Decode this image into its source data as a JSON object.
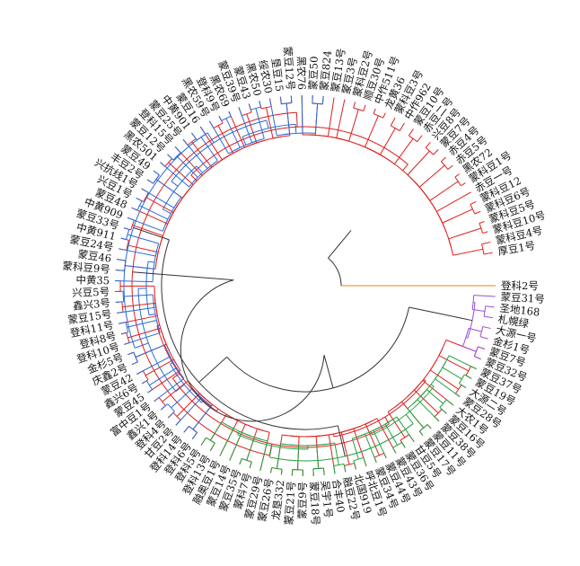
{
  "chart_data": {
    "type": "dendrogram",
    "layout": "circular",
    "leaves_clockwise_from_right": [
      "登科2号",
      "蒙豆31号",
      "圣地168",
      "札幌绿",
      "大源一号",
      "金杉1号",
      "蒙豆7号",
      "蒙豆32号",
      "蒙豆37号",
      "蒙豆19号",
      "大源二号",
      "蒙豆28号",
      "大农1号",
      "蒙豆16号",
      "蒙豆38号",
      "蒙豆11号",
      "蒙豆17号",
      "甘豆5号",
      "蒙豆36号",
      "蒙豆43号",
      "蒙豆44号",
      "蒙豆34号",
      "呼北豆1号",
      "北国919",
      "融豆22号",
      "合丰40",
      "吴宇1号",
      "蒙豆18号",
      "蒙豆9号",
      "蒙豆21号",
      "龙垦332",
      "蒙豆26号",
      "蒙豆29号",
      "蒙科7号",
      "蒙豆35号",
      "蒙豆14号",
      "融奥豆1号",
      "登科13号",
      "登科5号",
      "登科6号",
      "登科14号",
      "甘豆2号",
      "登科4号",
      "鑫兴1号",
      "富中豆1号",
      "蒙豆45",
      "鑫兴6号",
      "蒙豆42",
      "庆鑫2号",
      "金杉5号",
      "登科10号",
      "登科8号",
      "登科11号",
      "蒙豆15号",
      "鑫兴3号",
      "兴豆5号",
      "中黄35",
      "蒙科豆9号",
      "蒙豆46",
      "蒙豆24号",
      "中黄911",
      "蒙豆33号",
      "中黄909",
      "蒙豆48",
      "兴豆1号",
      "兴抗线1号",
      "丰豆2号",
      "蒙豆49",
      "黑农501",
      "蒙豆12号",
      "登科15号",
      "蒙豆25号",
      "中黄901",
      "蒙豆16",
      "黑农59号",
      "登科9号",
      "黑农69",
      "蒙豆39号",
      "蒙豆43",
      "黑农50",
      "绥农30",
      "垦豆15",
      "蒙豆12号",
      "黑农76",
      "蒙豆50",
      "蒙豆824",
      "蒙豆13号",
      "蒙豆3号",
      "蒙科豆2号",
      "顺豆30号",
      "中作511号",
      "龙黄36",
      "蒙科豆3号",
      "中作962",
      "蒙豆10号",
      "赤豆二号",
      "兴豆8号",
      "蒙豆7号",
      "赤豆4号",
      "赤豆5号",
      "黑农72",
      "蒙科豆1号",
      "赤豆一号",
      "蒙科豆12",
      "蒙科豆6号",
      "蒙科豆5号",
      "蒙科豆10号",
      "蒙科豆4号",
      "厚豆1号"
    ],
    "clusters": [
      {
        "color": "#DD1F1F",
        "leaves": [
          "蒙豆13号",
          "蒙豆3号",
          "蒙科豆2号",
          "顺豆30号",
          "中作511号",
          "龙黄36",
          "蒙科豆3号",
          "中作962",
          "蒙豆10号",
          "赤豆二号",
          "兴豆8号",
          "蒙豆7号",
          "赤豆4号",
          "赤豆5号",
          "黑农72",
          "蒙科豆1号",
          "赤豆一号",
          "蒙科豆12",
          "蒙科豆6号",
          "蒙科豆5号",
          "蒙科豆10号",
          "蒙科豆4号",
          "厚豆1号"
        ]
      },
      {
        "color": "#E08A1A",
        "leaves": [
          "登科2号"
        ]
      },
      {
        "color": "#9C4FD6",
        "leaves": [
          "蒙豆31号",
          "圣地168",
          "札幌绿",
          "大源一号",
          "金杉1号",
          "蒙豆7号",
          "蒙豆32号"
        ]
      },
      {
        "color": "#22A03C",
        "leaves": [
          "蒙豆37号",
          "蒙豆19号",
          "大源二号",
          "蒙豆28号",
          "大农1号",
          "蒙豆16号",
          "蒙豆38号",
          "蒙豆11号",
          "蒙豆17号",
          "甘豆5号",
          "蒙豆36号",
          "蒙豆43号",
          "蒙豆44号",
          "蒙豆34号",
          "呼北豆1号",
          "北国919",
          "融豆22号",
          "合丰40",
          "吴宇1号",
          "蒙豆18号",
          "蒙豆9号",
          "蒙豆21号",
          "龙垦332",
          "蒙豆26号",
          "蒙豆29号",
          "蒙科7号",
          "蒙豆35号",
          "蒙豆14号",
          "融奥豆1号",
          "登科13号",
          "登科5号"
        ]
      },
      {
        "color": "#2A6BD8",
        "leaves": [
          "登科6号",
          "登科14号",
          "甘豆2号",
          "登科4号",
          "鑫兴1号",
          "富中豆1号",
          "蒙豆45",
          "鑫兴6号",
          "蒙豆42",
          "庆鑫2号",
          "金杉5号",
          "登科10号",
          "登科8号",
          "登科11号",
          "蒙豆15号",
          "鑫兴3号",
          "兴豆5号",
          "中黄35",
          "蒙科豆9号",
          "蒙豆46",
          "蒙豆24号",
          "中黄911",
          "蒙豆33号",
          "中黄909",
          "蒙豆48",
          "兴豆1号",
          "兴抗线1号",
          "丰豆2号",
          "蒙豆49",
          "黑农501",
          "蒙豆12号",
          "登科15号",
          "蒙豆25号",
          "中黄901",
          "蒙豆16",
          "黑农59号",
          "登科9号",
          "黑农69",
          "蒙豆39号",
          "蒙豆43",
          "黑农50",
          "绥农30",
          "垦豆15",
          "蒙豆12号",
          "黑农76",
          "蒙豆50",
          "蒙豆824"
        ]
      }
    ],
    "trunk_color": "#333333"
  }
}
